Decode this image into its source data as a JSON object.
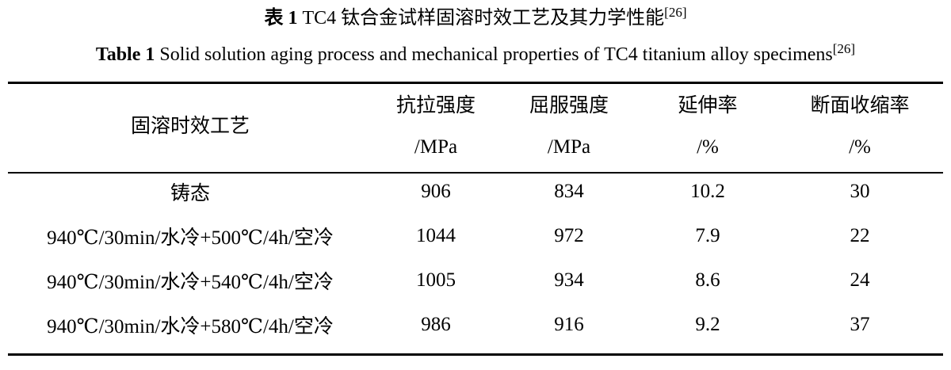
{
  "caption_zh": {
    "label": "表 1",
    "text": "TC4 钛合金试样固溶时效工艺及其力学性能",
    "ref": "[26]"
  },
  "caption_en": {
    "label": "Table 1",
    "text": "Solid solution aging process and mechanical properties of TC4 titanium alloy specimens",
    "ref": "[26]"
  },
  "table": {
    "header": [
      {
        "name": "固溶时效工艺"
      },
      {
        "name": "抗拉强度",
        "unit": "/MPa"
      },
      {
        "name": "屈服强度",
        "unit": "/MPa"
      },
      {
        "name": "延伸率",
        "unit": "/%"
      },
      {
        "name": "断面收缩率",
        "unit": "/%"
      }
    ],
    "rows": [
      [
        "铸态",
        906,
        834,
        10.2,
        30
      ],
      [
        "940℃/30min/水冷+500℃/4h/空冷",
        1044,
        972,
        7.9,
        22
      ],
      [
        "940℃/30min/水冷+540℃/4h/空冷",
        1005,
        934,
        8.6,
        24
      ],
      [
        "940℃/30min/水冷+580℃/4h/空冷",
        986,
        916,
        9.2,
        37
      ]
    ]
  }
}
